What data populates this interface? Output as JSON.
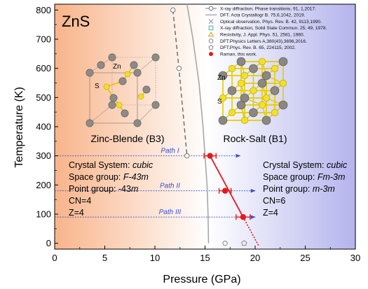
{
  "chart_data": {
    "type": "scatter",
    "title": "ZnS",
    "xlabel": "Pressure (GPa)",
    "ylabel": "Temperature (K)",
    "xlim": [
      0,
      30
    ],
    "ylim": [
      -20,
      820
    ],
    "xticks": [
      0,
      5,
      10,
      15,
      20,
      25,
      30
    ],
    "yticks": [
      0,
      100,
      200,
      300,
      400,
      500,
      600,
      700,
      800
    ],
    "legend_position": "top-right",
    "legend": [
      {
        "label": "X-ray diffraction, Phase transitions, 91, 1,2017."
      },
      {
        "label": "DFT. Acta Crystallogr B. 75,6,1042, 2019."
      },
      {
        "label": "Optical observation, Phys. Rev. B. 42, 9113,1990."
      },
      {
        "label": "X-ray diffraction, Solid State Commun. 25, 49, 1978."
      },
      {
        "label": "Resistivity, J. Appl. Phys. 51, 2581, 1980."
      },
      {
        "label": "DFT.Physics Letters A,380(43),3696,2016."
      },
      {
        "label": "DFT.Phys. Rev. B. 65, 224115, 2002."
      },
      {
        "label": "Raman, this work."
      }
    ],
    "series": [
      {
        "name": "X-ray diffraction, Phase transitions, 91, 1,2017.",
        "marker": "open-circle-dashed",
        "points": [
          [
            11.8,
            800
          ],
          [
            12.4,
            600
          ],
          [
            13.2,
            300
          ]
        ]
      },
      {
        "name": "DFT. Acta Crystallogr B. 75,6,1042, 2019.",
        "marker": "line",
        "points": [
          [
            13.2,
            820
          ],
          [
            13.8,
            700
          ],
          [
            14.4,
            550
          ],
          [
            14.8,
            400
          ],
          [
            15.0,
            300
          ],
          [
            15.2,
            200
          ],
          [
            15.3,
            100
          ],
          [
            15.35,
            0
          ]
        ]
      },
      {
        "name": "DFT.Physics Letters A,380(43),3696,2016.",
        "marker": "open-circle",
        "points": [
          [
            17.0,
            0
          ]
        ]
      },
      {
        "name": "DFT.Phys. Rev. B. 65, 224115, 2002.",
        "marker": "open-pentagon",
        "points": [
          [
            18.9,
            0
          ]
        ]
      },
      {
        "name": "Raman, this work.",
        "marker": "filled-circle",
        "color": "#e31a1c",
        "points": [
          {
            "x": 15.5,
            "y": 300,
            "xerr": 0.6
          },
          {
            "x": 17.0,
            "y": 180,
            "xerr": 0.6
          },
          {
            "x": 18.8,
            "y": 90,
            "xerr": 0.7
          }
        ]
      }
    ],
    "paths": [
      {
        "label": "Path I",
        "y": 300,
        "x_start": 0,
        "x_end": 18.5
      },
      {
        "label": "Path II",
        "y": 180,
        "x_start": 0,
        "x_end": 20
      },
      {
        "label": "Path III",
        "y": 90,
        "x_start": 0,
        "x_end": 20
      }
    ],
    "phases": {
      "left_name": "Zinc-Blende (B3)",
      "right_name": "Rock-Salt (B1)",
      "atom_zn": "Zn",
      "atom_s": "S",
      "left_info": {
        "crystal_label": "Crystal  System: ",
        "crystal_value": "cubic",
        "space_label": "Space group: ",
        "space_value": "F-43m",
        "point_label": "Point  group: -43",
        "point_value": "m",
        "cn": "CN=4",
        "z": "Z=4"
      },
      "right_info": {
        "crystal_label": "Crystal  System: ",
        "crystal_value": "cubic",
        "space_label": "Space group: ",
        "space_value": "Fm-3m",
        "point_label": "Point  group: ",
        "point_value": "m-3m",
        "cn": "CN=6",
        "z": "Z=4"
      }
    },
    "colors": {
      "left_gradient": [
        "#f8b48a",
        "#ffffff"
      ],
      "right_gradient": [
        "#ffffff",
        "#b4b4ee"
      ],
      "raman": "#e31a1c",
      "path_arrow": "#3a4fd0"
    }
  }
}
